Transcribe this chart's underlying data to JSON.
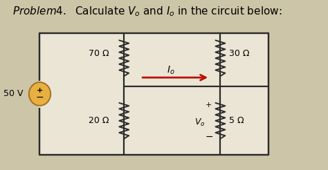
{
  "bg_color": "#cdc5a8",
  "circuit_bg": "#ebe5d5",
  "wire_color": "#2a2a2a",
  "res_color": "#2a2a2a",
  "source_fill": "#e8b040",
  "source_edge": "#a07020",
  "arrow_color": "#bb1100",
  "label_70": "70 Ω",
  "label_30": "30 Ω",
  "label_20": "20 Ω",
  "label_5": "5 Ω",
  "label_50V": "50 V",
  "font_title": 11,
  "font_label": 9,
  "font_small": 8,
  "lw_wire": 1.6,
  "lw_res": 1.4
}
